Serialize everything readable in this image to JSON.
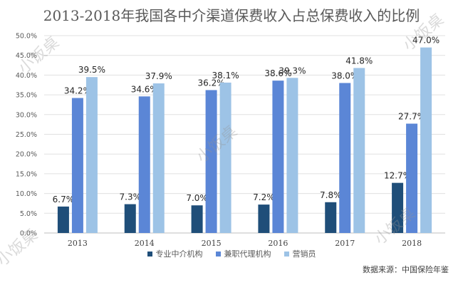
{
  "chart_data": {
    "type": "bar",
    "title": "2013-2018年我国各中介渠道保费收入占总保费收入的比例",
    "categories": [
      "2013",
      "2014",
      "2015",
      "2016",
      "2017",
      "2018"
    ],
    "series": [
      {
        "name": "专业中介机构",
        "color": "#1f4e79",
        "values": [
          6.7,
          7.3,
          7.0,
          7.2,
          7.8,
          12.7
        ]
      },
      {
        "name": "兼职代理机构",
        "color": "#5b86d6",
        "values": [
          34.2,
          34.6,
          36.2,
          38.6,
          38.0,
          27.7
        ]
      },
      {
        "name": "营销员",
        "color": "#9dc3e6",
        "values": [
          39.5,
          37.9,
          38.1,
          39.3,
          41.8,
          47.0
        ]
      }
    ],
    "yticks": [
      "0.0%",
      "5.0%",
      "10.0%",
      "15.0%",
      "20.0%",
      "25.0%",
      "30.0%",
      "35.0%",
      "40.0%",
      "45.0%",
      "50.0%"
    ],
    "ylim": [
      0,
      50
    ],
    "grid": true,
    "legend_position": "bottom",
    "value_suffix": "%"
  },
  "source": "数据来源：中国保险年鉴",
  "watermark": "小饭桌"
}
